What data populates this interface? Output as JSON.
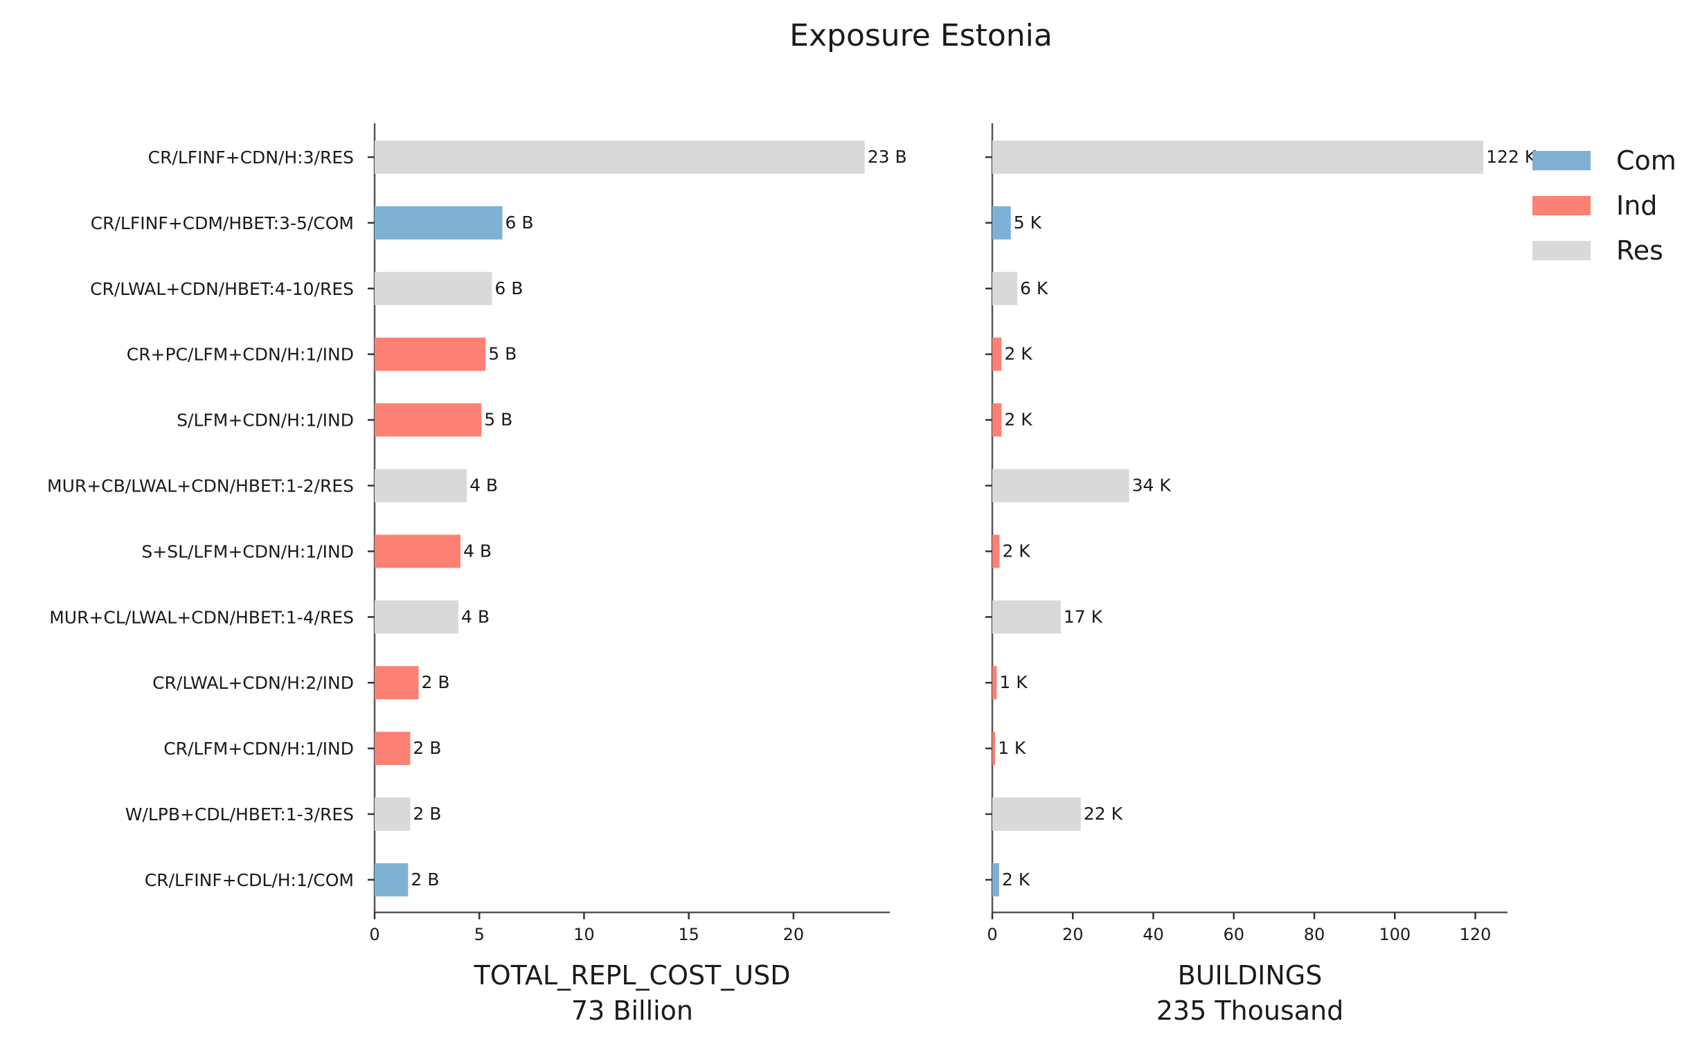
{
  "chart_data": {
    "type": "bar",
    "orientation": "horizontal",
    "title": "Exposure Estonia",
    "categories": [
      "CR/LFINF+CDN/H:3/RES",
      "CR/LFINF+CDM/HBET:3-5/COM",
      "CR/LWAL+CDN/HBET:4-10/RES",
      "CR+PC/LFM+CDN/H:1/IND",
      "S/LFM+CDN/H:1/IND",
      "MUR+CB/LWAL+CDN/HBET:1-2/RES",
      "S+SL/LFM+CDN/H:1/IND",
      "MUR+CL/LWAL+CDN/HBET:1-4/RES",
      "CR/LWAL+CDN/H:2/IND",
      "CR/LFM+CDN/H:1/IND",
      "W/LPB+CDL/HBET:1-3/RES",
      "CR/LFINF+CDL/H:1/COM"
    ],
    "category_group": [
      "Res",
      "Com",
      "Res",
      "Ind",
      "Ind",
      "Res",
      "Ind",
      "Res",
      "Ind",
      "Ind",
      "Res",
      "Com"
    ],
    "legend": {
      "placement": "top-right",
      "entries": [
        {
          "name": "Com",
          "color": "#7fb1d4"
        },
        {
          "name": "Ind",
          "color": "#fc8073"
        },
        {
          "name": "Res",
          "color": "#d9d9d9"
        }
      ]
    },
    "panels": [
      {
        "xlabel": "TOTAL_REPL_COST_USD",
        "xlabel_sub": "73 Billion",
        "xlim": [
          0,
          24.6
        ],
        "xticks": [
          0,
          5,
          10,
          15,
          20
        ],
        "values": [
          23.4,
          6.1,
          5.6,
          5.3,
          5.1,
          4.4,
          4.1,
          4.0,
          2.1,
          1.7,
          1.7,
          1.6
        ],
        "value_labels": [
          "23 B",
          "6 B",
          "6 B",
          "5 B",
          "5 B",
          "4 B",
          "4 B",
          "4 B",
          "2 B",
          "2 B",
          "2 B",
          "2 B"
        ]
      },
      {
        "xlabel": "BUILDINGS",
        "xlabel_sub": "235 Thousand",
        "xlim": [
          0,
          128
        ],
        "xticks": [
          0,
          20,
          40,
          60,
          80,
          100,
          120
        ],
        "values": [
          122,
          4.6,
          6.2,
          2.3,
          2.3,
          34,
          1.8,
          17,
          1.1,
          0.7,
          22,
          1.7
        ],
        "value_labels": [
          "122 K",
          "5 K",
          "6 K",
          "2 K",
          "2 K",
          "34 K",
          "2 K",
          "17 K",
          "1 K",
          "1 K",
          "22 K",
          "2 K"
        ]
      }
    ],
    "grid": false
  }
}
